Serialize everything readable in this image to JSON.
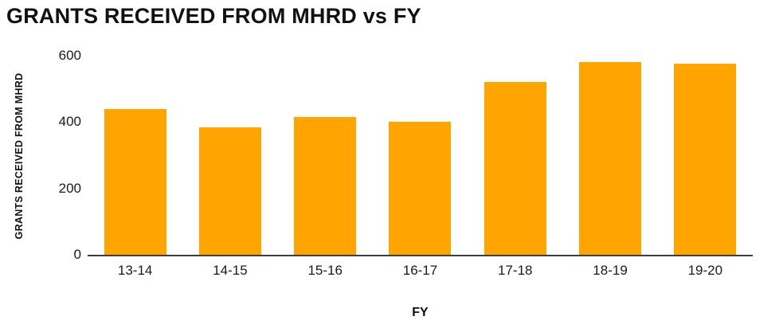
{
  "colors": {
    "bar": "#FFA400",
    "axis": "#3e3e3e",
    "text": "#1a1a1a"
  },
  "chart_data": {
    "type": "bar",
    "title": "GRANTS RECEIVED FROM MHRD vs FY",
    "categories": [
      "13-14",
      "14-15",
      "15-16",
      "16-17",
      "17-18",
      "18-19",
      "19-20"
    ],
    "values": [
      440,
      385,
      415,
      400,
      520,
      580,
      575
    ],
    "xlabel": "FY",
    "ylabel": "GRANTS RECEIVED FROM MHRD",
    "ylim": [
      0,
      600
    ],
    "yticks": [
      0,
      200,
      400,
      600
    ],
    "grid": false,
    "legend": "none",
    "bar_color": "#FFA400"
  }
}
